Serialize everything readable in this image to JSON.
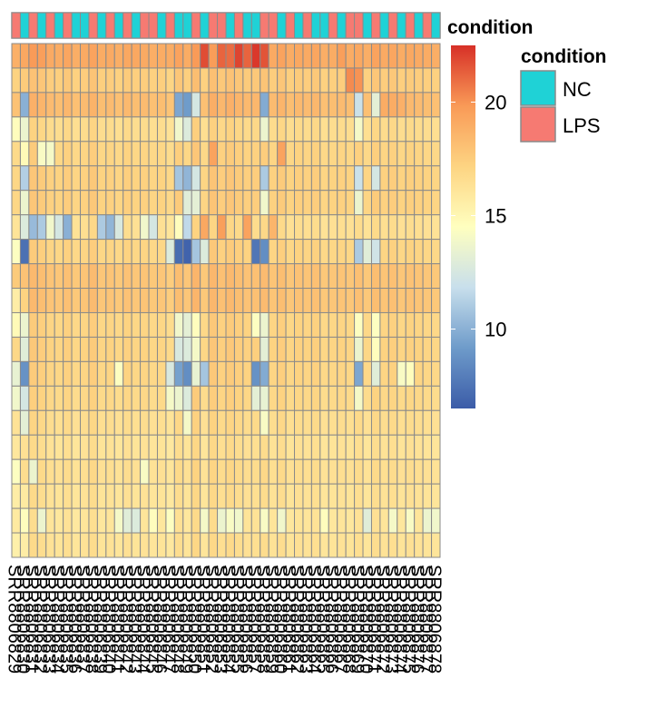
{
  "chart_data": {
    "type": "heatmap",
    "colors": {
      "NC": "#1fd2d6",
      "LPS": "#f67a72",
      "cell_border": "#8a8a8a",
      "scale": [
        "#3b5ca8",
        "#6e9bca",
        "#c8dfec",
        "#ffffbf",
        "#fdd482",
        "#f99a57",
        "#d73027"
      ]
    },
    "annotation_title": "condition",
    "legend": {
      "title": "condition",
      "items": [
        {
          "label": "NC",
          "color": "#1fd2d6"
        },
        {
          "label": "LPS",
          "color": "#f67a72"
        }
      ]
    },
    "colorbar": {
      "min": 6.5,
      "max": 22.5,
      "ticks": [
        10,
        15,
        20
      ]
    },
    "column_labels": [
      "SRR8806829",
      "SRR8806830",
      "SRR8806831",
      "SRR8806832",
      "SRR8806833",
      "SRR8806834",
      "SRR8806835",
      "SRR8806836",
      "SRR8806837",
      "SRR8806838",
      "SRR8806839",
      "SRR8806840",
      "SRR8806841",
      "SRR8806842",
      "SRR8806843",
      "SRR8806844",
      "SRR8806845",
      "SRR8806846",
      "SRR8806847",
      "SRR8806848",
      "SRR8806849",
      "SRR8806850",
      "SRR8806851",
      "SRR8806852",
      "SRR8806853",
      "SRR8806854",
      "SRR8806855",
      "SRR8806856",
      "SRR8806857",
      "SRR8806858",
      "SRR8806859",
      "SRR8806860",
      "SRR8806861",
      "SRR8806862",
      "SRR8806863",
      "SRR8806864",
      "SRR8806865",
      "SRR8806866",
      "SRR8806867",
      "SRR8806868",
      "SRR8806869",
      "SRR8806870",
      "SRR8806871",
      "SRR8806872",
      "SRR8806873",
      "SRR8806874",
      "SRR8806875",
      "SRR8806876",
      "SRR8806877",
      "SRR8806878"
    ],
    "column_condition": [
      "LPS",
      "NC",
      "LPS",
      "NC",
      "LPS",
      "NC",
      "LPS",
      "NC",
      "NC",
      "LPS",
      "NC",
      "LPS",
      "NC",
      "LPS",
      "NC",
      "LPS",
      "LPS",
      "NC",
      "LPS",
      "NC",
      "NC",
      "LPS",
      "NC",
      "LPS",
      "LPS",
      "NC",
      "LPS",
      "NC",
      "NC",
      "LPS",
      "LPS",
      "NC",
      "LPS",
      "NC",
      "LPS",
      "NC",
      "NC",
      "LPS",
      "NC",
      "LPS",
      "LPS",
      "NC",
      "LPS",
      "NC",
      "LPS",
      "NC",
      "LPS",
      "NC",
      "LPS",
      "NC"
    ],
    "row_base": [
      18.8,
      17.2,
      18.0,
      16.4,
      16.8,
      17.0,
      17.0,
      16.2,
      16.8,
      17.6,
      17.6,
      16.8,
      16.9,
      16.8,
      16.6,
      16.3,
      16.0,
      16.2,
      16.0,
      15.8,
      16.0
    ],
    "col_offset": [
      0.0,
      0.4,
      0.8,
      0.6,
      0.3,
      0.2,
      0.5,
      0.1,
      0.3,
      0.7,
      0.2,
      0.3,
      0.1,
      0.4,
      0.2,
      0.3,
      0.1,
      0.2,
      -0.1,
      0.6,
      0.2,
      1.0,
      0.1,
      0.9,
      0.5,
      0.8,
      0.6,
      0.4,
      0.5,
      0.7,
      0.3,
      0.6,
      0.2,
      0.4,
      0.3,
      0.5,
      0.1,
      0.2,
      0.3,
      0.2,
      0.5,
      0.1,
      0.6,
      0.3,
      0.5,
      0.2,
      0.4,
      0.3,
      0.2,
      0.1
    ],
    "overrides": [
      [
        0,
        22,
        21.8
      ],
      [
        0,
        24,
        21.2
      ],
      [
        0,
        25,
        21.0
      ],
      [
        0,
        26,
        22.0
      ],
      [
        0,
        27,
        21.2
      ],
      [
        0,
        28,
        22.3
      ],
      [
        0,
        29,
        21.6
      ],
      [
        0,
        2,
        19.8
      ],
      [
        0,
        3,
        19.6
      ],
      [
        0,
        9,
        19.4
      ],
      [
        0,
        14,
        19.2
      ],
      [
        0,
        18,
        19.0
      ],
      [
        0,
        38,
        19.6
      ],
      [
        0,
        40,
        19.2
      ],
      [
        1,
        39,
        20.2
      ],
      [
        1,
        40,
        20.0
      ],
      [
        2,
        1,
        10.0
      ],
      [
        2,
        19,
        9.6
      ],
      [
        2,
        20,
        9.2
      ],
      [
        2,
        21,
        12.4
      ],
      [
        2,
        29,
        9.8
      ],
      [
        2,
        40,
        12.0
      ],
      [
        2,
        42,
        13.2
      ],
      [
        2,
        43,
        19.0
      ],
      [
        2,
        44,
        19.0
      ],
      [
        2,
        45,
        18.8
      ],
      [
        2,
        1,
        10.0
      ],
      [
        3,
        0,
        14.6
      ],
      [
        3,
        1,
        13.6
      ],
      [
        3,
        19,
        13.8
      ],
      [
        3,
        20,
        12.8
      ],
      [
        3,
        29,
        13.6
      ],
      [
        3,
        40,
        14.0
      ],
      [
        4,
        1,
        14.8
      ],
      [
        4,
        3,
        14.2
      ],
      [
        4,
        4,
        14.0
      ],
      [
        4,
        23,
        19.4
      ],
      [
        4,
        31,
        19.4
      ],
      [
        5,
        1,
        11.2
      ],
      [
        5,
        19,
        10.8
      ],
      [
        5,
        20,
        10.2
      ],
      [
        5,
        21,
        12.4
      ],
      [
        5,
        29,
        11.0
      ],
      [
        5,
        40,
        12.0
      ],
      [
        5,
        42,
        12.4
      ],
      [
        6,
        1,
        13.6
      ],
      [
        6,
        20,
        13.0
      ],
      [
        6,
        21,
        13.2
      ],
      [
        6,
        29,
        13.8
      ],
      [
        6,
        40,
        13.6
      ],
      [
        7,
        1,
        12.8
      ],
      [
        7,
        2,
        10.4
      ],
      [
        7,
        3,
        11.0
      ],
      [
        7,
        4,
        13.8
      ],
      [
        7,
        5,
        12.4
      ],
      [
        7,
        6,
        10.0
      ],
      [
        7,
        10,
        11.0
      ],
      [
        7,
        11,
        10.2
      ],
      [
        7,
        12,
        12.6
      ],
      [
        7,
        15,
        13.8
      ],
      [
        7,
        16,
        12.4
      ],
      [
        7,
        19,
        14.6
      ],
      [
        7,
        20,
        11.6
      ],
      [
        7,
        21,
        17.2
      ],
      [
        7,
        22,
        19.2
      ],
      [
        7,
        24,
        19.6
      ],
      [
        7,
        27,
        19.4
      ],
      [
        7,
        30,
        18.6
      ],
      [
        8,
        0,
        14.4
      ],
      [
        8,
        1,
        7.4
      ],
      [
        8,
        18,
        12.8
      ],
      [
        8,
        19,
        7.2
      ],
      [
        8,
        20,
        6.8
      ],
      [
        8,
        21,
        10.8
      ],
      [
        8,
        22,
        12.8
      ],
      [
        8,
        28,
        7.6
      ],
      [
        8,
        29,
        8.6
      ],
      [
        8,
        40,
        11.0
      ],
      [
        8,
        41,
        13.0
      ],
      [
        8,
        42,
        12.2
      ],
      [
        10,
        0,
        15.6
      ],
      [
        10,
        1,
        17.2
      ],
      [
        11,
        0,
        14.8
      ],
      [
        11,
        1,
        13.6
      ],
      [
        11,
        19,
        13.8
      ],
      [
        11,
        20,
        13.2
      ],
      [
        11,
        21,
        14.6
      ],
      [
        11,
        28,
        14.4
      ],
      [
        11,
        29,
        13.6
      ],
      [
        11,
        40,
        14.4
      ],
      [
        11,
        42,
        14.4
      ],
      [
        12,
        1,
        13.0
      ],
      [
        12,
        19,
        12.6
      ],
      [
        12,
        20,
        12.8
      ],
      [
        12,
        21,
        14.0
      ],
      [
        12,
        29,
        13.2
      ],
      [
        12,
        40,
        13.6
      ],
      [
        12,
        42,
        14.6
      ],
      [
        13,
        0,
        13.4
      ],
      [
        13,
        1,
        8.8
      ],
      [
        13,
        12,
        14.4
      ],
      [
        13,
        18,
        12.6
      ],
      [
        13,
        19,
        9.4
      ],
      [
        13,
        20,
        8.6
      ],
      [
        13,
        21,
        13.4
      ],
      [
        13,
        22,
        10.8
      ],
      [
        13,
        28,
        8.8
      ],
      [
        13,
        29,
        9.8
      ],
      [
        13,
        40,
        9.6
      ],
      [
        13,
        42,
        13.0
      ],
      [
        13,
        45,
        14.2
      ],
      [
        13,
        46,
        14.6
      ],
      [
        14,
        0,
        13.8
      ],
      [
        14,
        1,
        12.4
      ],
      [
        14,
        18,
        14.0
      ],
      [
        14,
        19,
        13.6
      ],
      [
        14,
        20,
        12.8
      ],
      [
        14,
        28,
        13.2
      ],
      [
        14,
        29,
        13.4
      ],
      [
        14,
        40,
        14.0
      ],
      [
        15,
        1,
        13.2
      ],
      [
        15,
        20,
        14.0
      ],
      [
        15,
        29,
        14.2
      ],
      [
        17,
        0,
        14.4
      ],
      [
        17,
        2,
        13.6
      ],
      [
        17,
        15,
        14.2
      ],
      [
        18,
        0,
        15.6
      ],
      [
        18,
        1,
        15.8
      ],
      [
        19,
        1,
        14.6
      ],
      [
        19,
        3,
        13.6
      ],
      [
        19,
        12,
        14.0
      ],
      [
        19,
        13,
        13.0
      ],
      [
        19,
        14,
        12.8
      ],
      [
        19,
        16,
        14.6
      ],
      [
        19,
        18,
        14.4
      ],
      [
        19,
        22,
        14.0
      ],
      [
        19,
        24,
        13.6
      ],
      [
        19,
        25,
        14.2
      ],
      [
        19,
        26,
        13.8
      ],
      [
        19,
        29,
        14.2
      ],
      [
        19,
        31,
        13.8
      ],
      [
        19,
        36,
        14.6
      ],
      [
        19,
        41,
        13.0
      ],
      [
        19,
        44,
        14.0
      ],
      [
        19,
        46,
        14.2
      ],
      [
        19,
        48,
        13.6
      ],
      [
        19,
        49,
        13.8
      ],
      [
        20,
        0,
        15.4
      ],
      [
        20,
        1,
        15.6
      ]
    ]
  }
}
